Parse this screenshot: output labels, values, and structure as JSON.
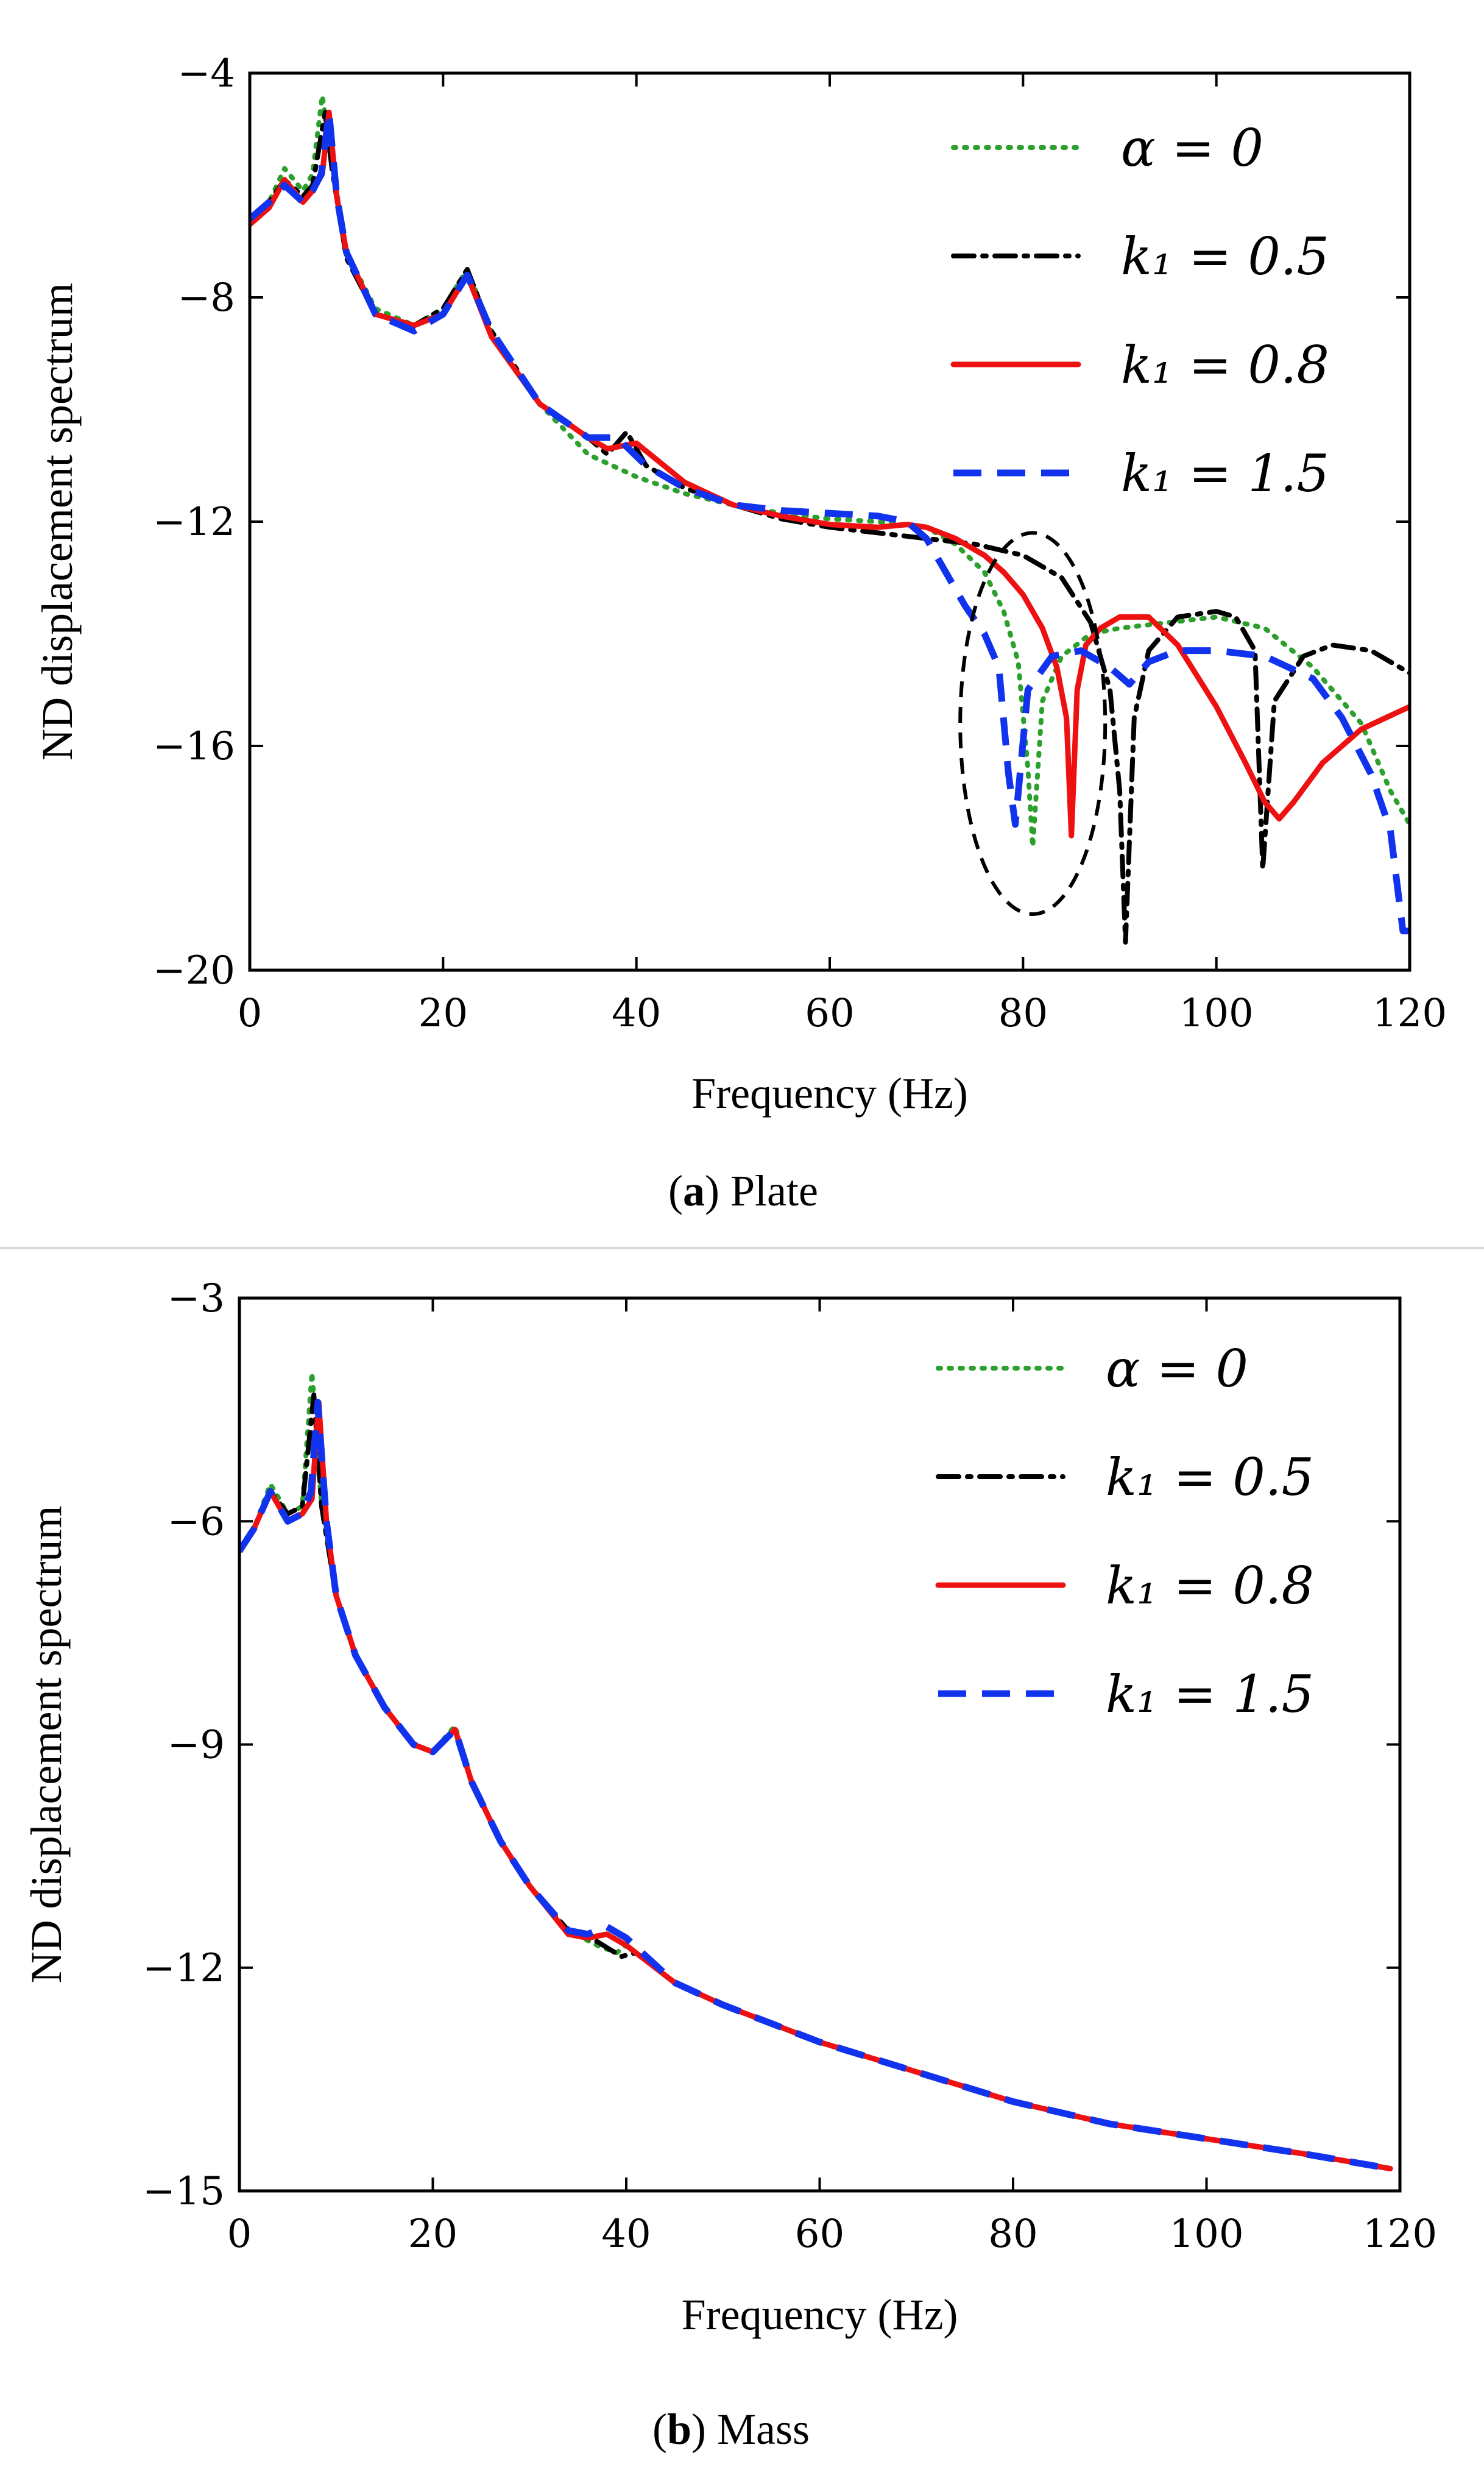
{
  "figure": {
    "colors": {
      "green": "#2ca02c",
      "black": "#000000",
      "red": "#ee1111",
      "blue": "#1133ee",
      "divider": "#d8d8d8"
    }
  },
  "chart_data": [
    {
      "id": "a",
      "type": "line",
      "title": "",
      "caption_letter": "a",
      "caption_text": "Plate",
      "caption_open": "(",
      "caption_close": ")",
      "xlabel": "Frequency (Hz)",
      "ylabel": "ND displacement spectrum",
      "xlim": [
        0,
        120
      ],
      "ylim": [
        -20,
        -4
      ],
      "xticks": [
        0,
        20,
        40,
        60,
        80,
        100,
        120
      ],
      "yticks": [
        -4,
        -8,
        -12,
        -16,
        -20
      ],
      "xtick_labels": [
        "0",
        "20",
        "40",
        "60",
        "80",
        "100",
        "120"
      ],
      "ytick_labels": [
        "−4",
        "−8",
        "−12",
        "−16",
        "−20"
      ],
      "grid": false,
      "legend_position": "top-right",
      "annotation": {
        "type": "dashed-ellipse",
        "center": [
          81,
          -15.6
        ],
        "radius_x": 7.5,
        "radius_y": 3.4
      },
      "series": [
        {
          "name": "α = 0",
          "style": "dotted",
          "color": "#2ca02c",
          "x": [
            0,
            2,
            3.6,
            5.5,
            6.5,
            7.5,
            8.5,
            10,
            13,
            17,
            20,
            22.5,
            25,
            30,
            35,
            40,
            45,
            50,
            55,
            60,
            65,
            70,
            73,
            76,
            78,
            79.5,
            80.5,
            81,
            82,
            84,
            87,
            90,
            95,
            100,
            105,
            110,
            115,
            118,
            120
          ],
          "y": [
            -6.7,
            -6.3,
            -5.7,
            -6.1,
            -5.8,
            -4.4,
            -5.6,
            -7.2,
            -8.2,
            -8.5,
            -8.2,
            -7.5,
            -8.6,
            -9.9,
            -10.8,
            -11.2,
            -11.5,
            -11.7,
            -11.85,
            -11.95,
            -12.0,
            -12.1,
            -12.4,
            -12.9,
            -13.6,
            -14.5,
            -16.4,
            -17.8,
            -15.2,
            -14.4,
            -14.0,
            -13.9,
            -13.8,
            -13.7,
            -13.9,
            -14.6,
            -15.6,
            -16.8,
            -17.4
          ]
        },
        {
          "name": "k₁ = 0.5",
          "style": "dashdot",
          "color": "#000000",
          "x": [
            0,
            2,
            3.6,
            5.5,
            6.5,
            7.8,
            8.5,
            10,
            13,
            17,
            20,
            22.5,
            25,
            30,
            35,
            37,
            39,
            41,
            45,
            50,
            55,
            60,
            65,
            70,
            75,
            80,
            84,
            87,
            89,
            90,
            90.6,
            91.5,
            93,
            96,
            100,
            102,
            104,
            104.8,
            106,
            109,
            112,
            116,
            120
          ],
          "y": [
            -6.7,
            -6.3,
            -5.9,
            -6.2,
            -6.0,
            -4.7,
            -5.7,
            -7.3,
            -8.3,
            -8.5,
            -8.2,
            -7.5,
            -8.6,
            -9.9,
            -10.5,
            -10.8,
            -10.4,
            -11.0,
            -11.4,
            -11.7,
            -11.95,
            -12.1,
            -12.2,
            -12.3,
            -12.4,
            -12.6,
            -13.0,
            -13.8,
            -15.0,
            -16.8,
            -19.5,
            -15.5,
            -14.3,
            -13.7,
            -13.6,
            -13.7,
            -14.3,
            -18.2,
            -15.2,
            -14.4,
            -14.2,
            -14.3,
            -14.7
          ]
        },
        {
          "name": "k₁ = 0.8",
          "style": "solid",
          "color": "#ee1111",
          "x": [
            0,
            2,
            3.6,
            5.5,
            6.5,
            7.5,
            8.2,
            9,
            10,
            13,
            17,
            20,
            22.5,
            25,
            30,
            35,
            37,
            40,
            45,
            50,
            55,
            60,
            65,
            68,
            70,
            73,
            76,
            78,
            80,
            82,
            83.5,
            84.5,
            85,
            85.6,
            86.5,
            88,
            90,
            93,
            96,
            100,
            103,
            105,
            106.5,
            108,
            111,
            115,
            120
          ],
          "y": [
            -6.7,
            -6.4,
            -5.9,
            -6.3,
            -6.1,
            -5.8,
            -4.7,
            -6.2,
            -7.2,
            -8.3,
            -8.5,
            -8.3,
            -7.6,
            -8.7,
            -9.9,
            -10.5,
            -10.7,
            -10.6,
            -11.3,
            -11.7,
            -11.9,
            -12.05,
            -12.1,
            -12.05,
            -12.1,
            -12.3,
            -12.6,
            -12.9,
            -13.3,
            -13.9,
            -14.6,
            -15.5,
            -17.6,
            -15.0,
            -14.2,
            -13.9,
            -13.7,
            -13.7,
            -14.2,
            -15.3,
            -16.3,
            -17.0,
            -17.3,
            -17.0,
            -16.3,
            -15.7,
            -15.3
          ]
        },
        {
          "name": "k₁ = 1.5",
          "style": "dashed",
          "color": "#1133ee",
          "x": [
            0,
            2,
            3.6,
            5.5,
            6.5,
            7.4,
            8.2,
            9,
            10,
            13,
            17,
            20,
            22.5,
            25,
            30,
            35,
            38,
            41,
            45,
            50,
            55,
            60,
            65,
            68,
            70,
            72,
            74,
            76,
            77.5,
            78.5,
            79.2,
            80.5,
            83,
            86,
            89,
            91,
            93,
            96,
            100,
            105,
            110,
            113,
            116,
            118,
            119.3,
            120
          ],
          "y": [
            -6.6,
            -6.3,
            -6.0,
            -6.3,
            -6.1,
            -5.8,
            -4.7,
            -6.2,
            -7.2,
            -8.3,
            -8.6,
            -8.3,
            -7.6,
            -8.6,
            -9.9,
            -10.5,
            -10.5,
            -11.0,
            -11.4,
            -11.7,
            -11.8,
            -11.85,
            -11.9,
            -12.0,
            -12.3,
            -12.9,
            -13.5,
            -14.0,
            -14.6,
            -16.5,
            -17.4,
            -15.0,
            -14.4,
            -14.3,
            -14.6,
            -14.9,
            -14.5,
            -14.3,
            -14.3,
            -14.4,
            -14.8,
            -15.5,
            -16.5,
            -17.5,
            -19.3,
            -19.3
          ]
        }
      ]
    },
    {
      "id": "b",
      "type": "line",
      "title": "",
      "caption_letter": "b",
      "caption_text": "Mass",
      "caption_open": "(",
      "caption_close": ")",
      "xlabel": "Frequency (Hz)",
      "ylabel": "ND displacement spectrum",
      "xlim": [
        0,
        120
      ],
      "ylim": [
        -15,
        -3
      ],
      "xticks": [
        0,
        20,
        40,
        60,
        80,
        100,
        120
      ],
      "yticks": [
        -3,
        -6,
        -9,
        -12,
        -15
      ],
      "xtick_labels": [
        "0",
        "20",
        "40",
        "60",
        "80",
        "100",
        "120"
      ],
      "ytick_labels": [
        "−3",
        "−6",
        "−9",
        "−12",
        "−15"
      ],
      "grid": false,
      "legend_position": "top-right",
      "series": [
        {
          "name": "α = 0",
          "style": "dotted",
          "color": "#2ca02c",
          "x": [
            0,
            1.5,
            3.2,
            5,
            6.5,
            7.5,
            8.5,
            10,
            12,
            15,
            18,
            20,
            22.3,
            24,
            27,
            30,
            34,
            37,
            39,
            40,
            45,
            50,
            60,
            70,
            80,
            90,
            100,
            110,
            119
          ],
          "y": [
            -6.4,
            -6.1,
            -5.5,
            -5.9,
            -5.8,
            -4.0,
            -5.8,
            -7.0,
            -7.8,
            -8.5,
            -9.0,
            -9.1,
            -8.75,
            -9.5,
            -10.3,
            -10.9,
            -11.5,
            -11.7,
            -11.8,
            -11.7,
            -12.2,
            -12.5,
            -13.0,
            -13.4,
            -13.8,
            -14.1,
            -14.3,
            -14.5,
            -14.7
          ]
        },
        {
          "name": "k₁ = 0.5",
          "style": "dashdot",
          "color": "#000000",
          "x": [
            0,
            1.5,
            3.2,
            5,
            6.5,
            7.7,
            8.5,
            10,
            12,
            15,
            18,
            20,
            22.3,
            24,
            27,
            30,
            34,
            37,
            39.5,
            41,
            45,
            50,
            60,
            70,
            80,
            90,
            100,
            110,
            119
          ],
          "y": [
            -6.4,
            -6.1,
            -5.6,
            -5.9,
            -5.8,
            -4.3,
            -5.8,
            -7.0,
            -7.8,
            -8.5,
            -9.0,
            -9.1,
            -8.8,
            -9.5,
            -10.3,
            -10.9,
            -11.5,
            -11.65,
            -11.85,
            -11.8,
            -12.2,
            -12.5,
            -13.0,
            -13.4,
            -13.8,
            -14.1,
            -14.3,
            -14.5,
            -14.7
          ]
        },
        {
          "name": "k₁ = 0.8",
          "style": "solid",
          "color": "#ee1111",
          "x": [
            0,
            1.5,
            3.2,
            5,
            6.5,
            7.5,
            8.2,
            9,
            10,
            12,
            15,
            18,
            20,
            22.3,
            24,
            27,
            30,
            34,
            36,
            38,
            40,
            45,
            50,
            60,
            70,
            80,
            90,
            100,
            110,
            119
          ],
          "y": [
            -6.4,
            -6.1,
            -5.6,
            -6.0,
            -5.9,
            -5.7,
            -4.4,
            -6.0,
            -7.0,
            -7.8,
            -8.5,
            -9.0,
            -9.1,
            -8.8,
            -9.5,
            -10.3,
            -10.9,
            -11.55,
            -11.6,
            -11.55,
            -11.7,
            -12.2,
            -12.5,
            -13.0,
            -13.4,
            -13.8,
            -14.1,
            -14.3,
            -14.5,
            -14.7
          ]
        },
        {
          "name": "k₁ = 1.5",
          "style": "dashed",
          "color": "#1133ee",
          "x": [
            0,
            1.5,
            3.2,
            5,
            6.5,
            7.4,
            8.1,
            9,
            10,
            12,
            15,
            18,
            20,
            22.3,
            24,
            27,
            30,
            34,
            36,
            38,
            40,
            45,
            50,
            60,
            70,
            80,
            90,
            100,
            110,
            119
          ],
          "y": [
            -6.4,
            -6.1,
            -5.6,
            -6.0,
            -5.9,
            -5.6,
            -4.4,
            -6.0,
            -7.0,
            -7.8,
            -8.5,
            -9.0,
            -9.1,
            -8.8,
            -9.5,
            -10.3,
            -10.9,
            -11.5,
            -11.55,
            -11.45,
            -11.6,
            -12.2,
            -12.5,
            -13.0,
            -13.4,
            -13.8,
            -14.1,
            -14.3,
            -14.5,
            -14.7
          ]
        }
      ]
    }
  ]
}
